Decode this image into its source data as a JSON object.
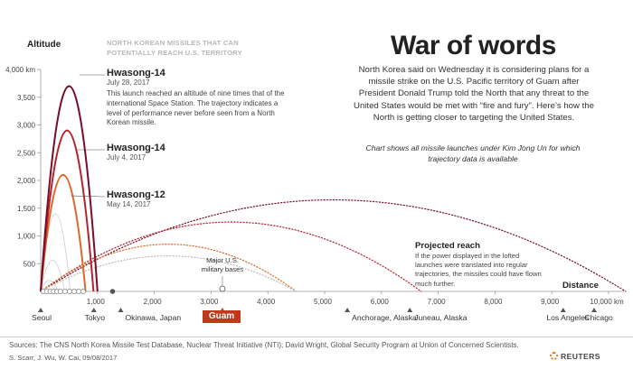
{
  "header": {
    "title": "War of words",
    "intro": "North Korea said on Wednesday it is considering plans for a missile strike on the U.S. Pacific territory of Guam after President Donald Trump told the North that any threat to the United States would be met with “fire and fury”. Here’s how the North is getting closer to targeting the United States.",
    "note": "Chart shows all missile launches under Kim Jong Un for which trajectory data is available"
  },
  "chart_data": {
    "type": "line",
    "title": "",
    "subtitle": "NORTH KOREAN MISSILES THAT CAN POTENTIALLY REACH U.S. TERRITORY",
    "ylabel": "Altitude",
    "xlabel": "Distance",
    "ylim": [
      0,
      4000
    ],
    "xlim": [
      0,
      10000
    ],
    "y_ticks": [
      500,
      1000,
      1500,
      2000,
      2500,
      3000,
      3500,
      4000
    ],
    "y_tick_labels": [
      "500",
      "1,000",
      "1,500",
      "2,000",
      "2,500",
      "3,000",
      "3,500",
      "4,000 km"
    ],
    "x_ticks": [
      1000,
      2000,
      3000,
      4000,
      5000,
      6000,
      7000,
      8000,
      9000,
      10000
    ],
    "x_tick_labels": [
      "1,000",
      "2,000",
      "3,000",
      "4,000",
      "5,000",
      "6,000",
      "7,000",
      "8,000",
      "9,000",
      "10,000 km"
    ],
    "grid": false,
    "lofted_launches": [
      {
        "name": "Hwasong-14",
        "date": "July 28, 2017",
        "apogee_km": 3700,
        "range_km": 1000,
        "color": "#7a0d26"
      },
      {
        "name": "Hwasong-14",
        "date": "July 4, 2017",
        "apogee_km": 2900,
        "range_km": 930,
        "color": "#b5232e"
      },
      {
        "name": "Hwasong-12",
        "date": "May 14, 2017",
        "apogee_km": 2100,
        "range_km": 790,
        "color": "#e0682a"
      }
    ],
    "other_launches": [
      {
        "apogee_km": 1400,
        "range_km": 520
      },
      {
        "apogee_km": 560,
        "range_km": 420
      },
      {
        "apogee_km": 200,
        "range_km": 300
      }
    ],
    "projected_reach": [
      {
        "apogee_km": 1650,
        "range_km": 10300,
        "color": "#7a0d26"
      },
      {
        "apogee_km": 1250,
        "range_km": 6700,
        "color": "#b5232e"
      },
      {
        "apogee_km": 850,
        "range_km": 4500,
        "color": "#e0682a"
      },
      {
        "apogee_km": 640,
        "range_km": 4500,
        "color": "#bdbdbd"
      }
    ],
    "hwasong_description": "This launch reached an altitude of nine times that of the international Space Station. The trajectory indicates a level of performance never before seen from a North Korean missile.",
    "projected_title": "Projected reach",
    "projected_description": "If the power displayed in the lofted launches were translated into regular trajectories, the missiles could have flown much further.",
    "bases_label": "Major U.S. military bases",
    "cities": [
      {
        "name": "Seoul",
        "distance_km": 0
      },
      {
        "name": "Tokyo",
        "distance_km": 1000
      },
      {
        "name": "Okinawa, Japan",
        "distance_km": 1250
      },
      {
        "name": "Guam",
        "distance_km": 3200,
        "highlight": true
      },
      {
        "name": "Anchorage, Alaska",
        "distance_km": 5400
      },
      {
        "name": "Juneau, Alaska",
        "distance_km": 6500
      },
      {
        "name": "Los Angeles",
        "distance_km": 9200
      },
      {
        "name": "Chicago",
        "distance_km": 10000
      }
    ]
  },
  "footer": {
    "sources": "Sources: The CNS North Korea Missile Test Database, Nuclear Threat Initiative (NTI); David Wright, Global Security Program at Union of Concerned Scientists.",
    "credits": "S. Scarr, J. Wu, W. Cai, 09/08/2017",
    "brand": "REUTERS"
  }
}
